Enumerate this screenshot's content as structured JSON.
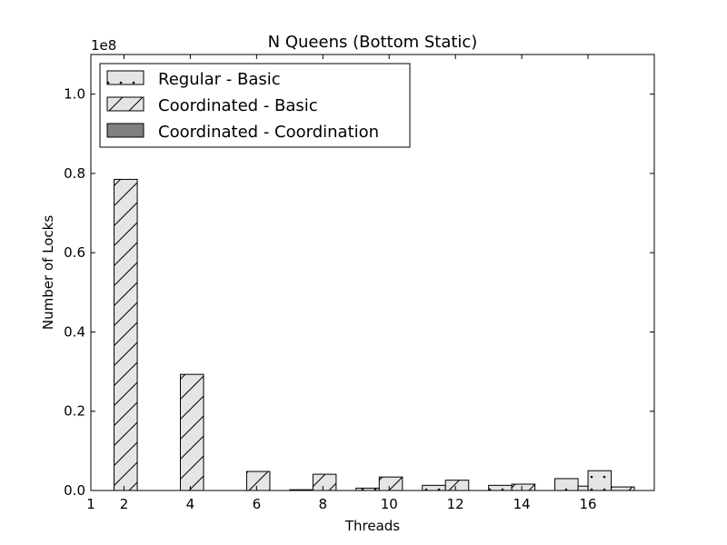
{
  "chart_data": {
    "type": "bar",
    "title": "N Queens (Bottom Static)",
    "xlabel": "Threads",
    "ylabel": "Number of Locks",
    "y_multiplier": "1e8",
    "xlim": [
      1,
      18
    ],
    "ylim": [
      0,
      1.1
    ],
    "xticks": [
      1,
      2,
      4,
      6,
      8,
      10,
      12,
      14,
      16
    ],
    "yticks": [
      0.0,
      0.2,
      0.4,
      0.6,
      0.8,
      1.0
    ],
    "ytick_labels": [
      "0.0",
      "0.2",
      "0.4",
      "0.6",
      "0.8",
      "1.0"
    ],
    "threads": [
      1,
      3,
      5,
      7,
      9,
      11,
      13,
      15
    ],
    "bar_width": 0.7,
    "series": [
      {
        "name": "Regular - Basic",
        "pattern": "dots",
        "fill": "#e5e5e5",
        "x_offset": 0.0,
        "values": [
          0.0,
          0.0,
          0.0,
          0.002,
          0.006,
          0.013,
          0.013,
          0.03
        ]
      },
      {
        "name": "Coordinated - Basic",
        "pattern": "hatch",
        "fill": "#e5e5e5",
        "x_offset": 0.7,
        "values": [
          0.785,
          0.293,
          0.048,
          0.041,
          0.034,
          0.026,
          0.016,
          0.011
        ]
      },
      {
        "name": "Coordinated - Coordination",
        "pattern": "solid",
        "fill": "#808080",
        "x_offset": 0.0,
        "values": [
          0,
          0,
          0,
          0,
          0,
          0,
          0,
          0
        ]
      }
    ],
    "extra_bars": [
      {
        "series": "Regular - Basic",
        "x": 16,
        "value": 0.05
      },
      {
        "series": "Coordinated - Basic",
        "x": 16.7,
        "value": 0.009
      }
    ],
    "legend_placement": "top-left",
    "grid": false
  }
}
